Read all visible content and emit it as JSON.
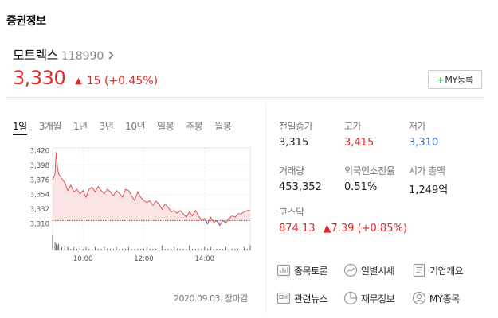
{
  "section": {
    "title": "증권정보"
  },
  "stock": {
    "name": "모트렉스",
    "code": "118990",
    "price": "3,330",
    "change_arrow": "▲",
    "change_text": "15 (+0.45%)",
    "my_button_plus": "+",
    "my_button_label": "MY등록"
  },
  "tabs": [
    "1일",
    "3개월",
    "1년",
    "3년",
    "10년",
    "일봉",
    "주봉",
    "월봉"
  ],
  "active_tab": "1일",
  "chart_data": {
    "type": "line",
    "yticks": [
      "3,420",
      "3,398",
      "3,376",
      "3,354",
      "3,332",
      "3,310"
    ],
    "ylim": [
      3300,
      3424
    ],
    "xticks": [
      "10:00",
      "12:00",
      "14:00"
    ],
    "x_tick_hours": [
      10,
      12,
      14
    ],
    "xlim": [
      9,
      15.5
    ],
    "prev_close": 3315,
    "date_label": "2020.09.03. 장마감",
    "series": [
      {
        "x": [
          9.0,
          9.08,
          9.12,
          9.16,
          9.2,
          9.3,
          9.4,
          9.5,
          9.6,
          9.7,
          9.8,
          9.9,
          10.0,
          10.1,
          10.2,
          10.3,
          10.4,
          10.5,
          10.6,
          10.7,
          10.8,
          10.9,
          11.0,
          11.1,
          11.2,
          11.3,
          11.4,
          11.5,
          11.6,
          11.7,
          11.8,
          11.9,
          12.0,
          12.1,
          12.2,
          12.3,
          12.4,
          12.5,
          12.6,
          12.7,
          12.8,
          12.9,
          13.0,
          13.1,
          13.2,
          13.3,
          13.4,
          13.5,
          13.6,
          13.7,
          13.8,
          13.9,
          14.0,
          14.1,
          14.2,
          14.3,
          14.4,
          14.5,
          14.6,
          14.7,
          14.8,
          14.9,
          15.0,
          15.1,
          15.2,
          15.3,
          15.4,
          15.5
        ],
        "y": [
          3375,
          3385,
          3418,
          3395,
          3385,
          3378,
          3372,
          3360,
          3368,
          3358,
          3362,
          3355,
          3360,
          3350,
          3362,
          3365,
          3358,
          3366,
          3360,
          3355,
          3362,
          3358,
          3352,
          3360,
          3356,
          3350,
          3362,
          3360,
          3352,
          3345,
          3358,
          3350,
          3345,
          3342,
          3345,
          3338,
          3344,
          3340,
          3332,
          3340,
          3335,
          3328,
          3330,
          3326,
          3330,
          3325,
          3320,
          3328,
          3322,
          3330,
          3322,
          3315,
          3318,
          3310,
          3320,
          3312,
          3315,
          3308,
          3315,
          3312,
          3318,
          3322,
          3320,
          3325,
          3325,
          3328,
          3330,
          3330
        ]
      }
    ],
    "volume": [
      9,
      5,
      4,
      3,
      4,
      2,
      3,
      2,
      1,
      2,
      1,
      3,
      1,
      2,
      1,
      1,
      2,
      1,
      1,
      2,
      1,
      1,
      1,
      2,
      1,
      1,
      1,
      2,
      1,
      1,
      1,
      1,
      1,
      2,
      1,
      1,
      1,
      1,
      3,
      1,
      1,
      1,
      2,
      1,
      1,
      1,
      1,
      3,
      1,
      1,
      1,
      1,
      2,
      1,
      2,
      1,
      1,
      1,
      1,
      2,
      1,
      1,
      1,
      1,
      1,
      2,
      1,
      3
    ],
    "colors": {
      "line": "#d9534f",
      "fill": "#fbe4e4",
      "below": "#2d6fd6",
      "baseline": "#e32626"
    }
  },
  "stats": {
    "prev_close": {
      "label": "전일종가",
      "value": "3,315"
    },
    "high": {
      "label": "고가",
      "value": "3,415"
    },
    "low": {
      "label": "저가",
      "value": "3,310"
    },
    "volume": {
      "label": "거래량",
      "value": "453,352"
    },
    "foreign_ratio": {
      "label": "외국인소진율",
      "value": "0.51%"
    },
    "market_cap": {
      "label": "시가 총액",
      "value": "1,249억"
    },
    "index": {
      "label": "코스닥",
      "value": "874.13",
      "change": "▲7.39 (+0.85%)"
    }
  },
  "links": [
    {
      "label": "종목토론",
      "icon": "discussion-icon"
    },
    {
      "label": "일별시세",
      "icon": "daily-price-icon"
    },
    {
      "label": "기업개요",
      "icon": "company-overview-icon"
    },
    {
      "label": "관련뉴스",
      "icon": "news-icon"
    },
    {
      "label": "재무정보",
      "icon": "financial-icon"
    },
    {
      "label": "MY종목",
      "icon": "my-stock-icon"
    }
  ]
}
